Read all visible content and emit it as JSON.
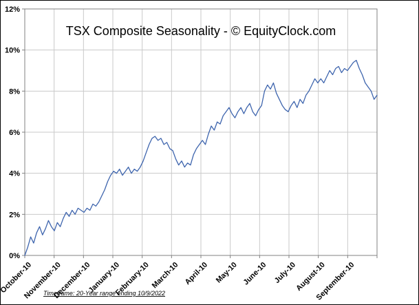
{
  "chart_data": {
    "type": "line",
    "title": "TSX Composite Seasonality - © EquityClock.com",
    "footnote": "Timeframe: 20-Year range ending 10/9/2022",
    "xlabel": "",
    "ylabel": "",
    "ylim": [
      0,
      12
    ],
    "ytick_step": 2,
    "ytick_suffix": "%",
    "grid": true,
    "legend": "none",
    "line_color": "#3d64ad",
    "gridline_color": "#c9c9c9",
    "axis_color": "#808080",
    "x_labels": [
      "October-10",
      "November-10",
      "December-10",
      "January-10",
      "February-10",
      "March-10",
      "April-10",
      "May-10",
      "June-10",
      "July-10",
      "August-10",
      "September-10"
    ],
    "values": [
      0.0,
      0.4,
      0.9,
      0.6,
      1.1,
      1.4,
      1.0,
      1.3,
      1.7,
      1.4,
      1.2,
      1.6,
      1.4,
      1.8,
      2.1,
      1.9,
      2.2,
      2.0,
      2.3,
      2.2,
      2.1,
      2.3,
      2.2,
      2.5,
      2.4,
      2.6,
      2.9,
      3.2,
      3.6,
      3.9,
      4.1,
      4.0,
      4.2,
      3.9,
      4.1,
      4.3,
      4.0,
      4.2,
      4.1,
      4.3,
      4.6,
      5.0,
      5.4,
      5.7,
      5.8,
      5.6,
      5.7,
      5.4,
      5.5,
      5.2,
      5.1,
      4.7,
      4.4,
      4.6,
      4.3,
      4.5,
      4.4,
      4.9,
      5.2,
      5.4,
      5.6,
      5.4,
      5.9,
      6.3,
      6.1,
      6.5,
      6.4,
      6.8,
      7.0,
      7.2,
      6.9,
      6.7,
      7.0,
      7.2,
      6.9,
      7.2,
      7.4,
      7.0,
      6.8,
      7.1,
      7.3,
      8.0,
      8.3,
      8.1,
      8.4,
      7.9,
      7.6,
      7.3,
      7.1,
      7.0,
      7.3,
      7.5,
      7.2,
      7.6,
      7.4,
      7.8,
      8.0,
      8.3,
      8.6,
      8.4,
      8.6,
      8.4,
      8.7,
      9.0,
      8.8,
      9.1,
      9.2,
      8.9,
      9.1,
      9.0,
      9.2,
      9.4,
      9.5,
      9.1,
      8.8,
      8.4,
      8.2,
      8.0,
      7.6,
      7.8
    ]
  }
}
